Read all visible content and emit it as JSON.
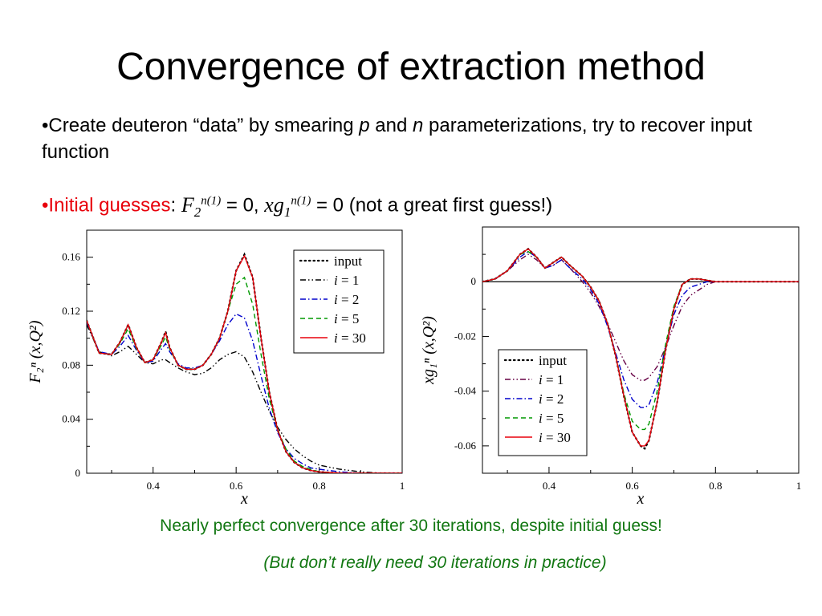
{
  "slide": {
    "title": "Convergence of extraction method",
    "bullet1": {
      "marker": "•",
      "text_a": "Create deuteron “data” by smearing ",
      "p": "p",
      "text_b": " and ",
      "n": "n",
      "text_c": " parameterizations, try to recover input function"
    },
    "bullet2": {
      "marker": "•",
      "label": "Initial guesses",
      "colon": ": ",
      "f2_base": "F",
      "f2_sub": "2",
      "f2_sup": "n(1)",
      "eq1": " = 0, ",
      "xg_base": "xg",
      "xg_sub": "1",
      "xg_sup": "n(1)",
      "eq2": " = 0 (not a great first guess!)"
    },
    "note1": "Nearly perfect convergence after 30 iterations, despite initial guess!",
    "note2": "(But don’t really need 30 iterations in practice)",
    "colors": {
      "title": "#000000",
      "accent_red": "#e8000b",
      "note_green": "#127712"
    }
  },
  "chart_data": [
    {
      "type": "line",
      "ylabel": "F₂ⁿ (x,Q²)",
      "xlabel": "x",
      "xlim": [
        0.24,
        1.0
      ],
      "ylim": [
        0,
        0.18
      ],
      "xticks": [
        0.4,
        0.6,
        0.8,
        1
      ],
      "xtick_labels": [
        "0.4",
        "0.6",
        "0.8",
        "1"
      ],
      "yticks": [
        0,
        0.04,
        0.08,
        0.12,
        0.16
      ],
      "ytick_labels": [
        "0",
        "0.04",
        "0.08",
        "0.12",
        "0.16"
      ],
      "legend_position": "top-right",
      "series": [
        {
          "name": "input",
          "color": "#000000",
          "dash": "dot",
          "x": [
            0.24,
            0.27,
            0.3,
            0.32,
            0.34,
            0.36,
            0.38,
            0.4,
            0.42,
            0.43,
            0.44,
            0.46,
            0.48,
            0.5,
            0.52,
            0.54,
            0.56,
            0.58,
            0.6,
            0.62,
            0.64,
            0.66,
            0.68,
            0.7,
            0.72,
            0.74,
            0.76,
            0.78,
            0.8,
            0.85,
            0.9,
            0.95,
            1.0
          ],
          "y": [
            0.113,
            0.089,
            0.088,
            0.097,
            0.11,
            0.093,
            0.082,
            0.084,
            0.097,
            0.105,
            0.093,
            0.08,
            0.077,
            0.077,
            0.08,
            0.088,
            0.1,
            0.12,
            0.15,
            0.162,
            0.145,
            0.1,
            0.06,
            0.032,
            0.016,
            0.008,
            0.004,
            0.002,
            0.001,
            0.0,
            0.0,
            0.0,
            0.0
          ]
        },
        {
          "name": "i = 1",
          "color": "#000000",
          "dash": "dashdotdot",
          "x": [
            0.24,
            0.27,
            0.3,
            0.32,
            0.34,
            0.36,
            0.38,
            0.4,
            0.42,
            0.43,
            0.44,
            0.46,
            0.48,
            0.5,
            0.52,
            0.54,
            0.56,
            0.58,
            0.6,
            0.62,
            0.64,
            0.66,
            0.68,
            0.7,
            0.72,
            0.74,
            0.76,
            0.78,
            0.8,
            0.85,
            0.9,
            0.95,
            1.0
          ],
          "y": [
            0.11,
            0.09,
            0.087,
            0.09,
            0.094,
            0.088,
            0.082,
            0.081,
            0.084,
            0.084,
            0.082,
            0.078,
            0.075,
            0.073,
            0.074,
            0.078,
            0.084,
            0.088,
            0.09,
            0.086,
            0.075,
            0.06,
            0.046,
            0.034,
            0.025,
            0.018,
            0.013,
            0.009,
            0.006,
            0.003,
            0.001,
            0.0,
            0.0
          ]
        },
        {
          "name": "i = 2",
          "color": "#0000cc",
          "dash": "dashdot",
          "x": [
            0.24,
            0.27,
            0.3,
            0.32,
            0.34,
            0.36,
            0.38,
            0.4,
            0.42,
            0.43,
            0.44,
            0.46,
            0.48,
            0.5,
            0.52,
            0.54,
            0.56,
            0.58,
            0.6,
            0.62,
            0.64,
            0.66,
            0.68,
            0.7,
            0.72,
            0.74,
            0.76,
            0.78,
            0.8,
            0.85,
            0.9,
            0.95,
            1.0
          ],
          "y": [
            0.112,
            0.09,
            0.088,
            0.094,
            0.102,
            0.091,
            0.082,
            0.083,
            0.092,
            0.096,
            0.09,
            0.081,
            0.078,
            0.078,
            0.08,
            0.088,
            0.098,
            0.11,
            0.118,
            0.115,
            0.098,
            0.072,
            0.048,
            0.03,
            0.018,
            0.011,
            0.007,
            0.004,
            0.003,
            0.001,
            0.0,
            0.0,
            0.0
          ]
        },
        {
          "name": "i = 5",
          "color": "#009900",
          "dash": "dash",
          "x": [
            0.24,
            0.27,
            0.3,
            0.32,
            0.34,
            0.36,
            0.38,
            0.4,
            0.42,
            0.43,
            0.44,
            0.46,
            0.48,
            0.5,
            0.52,
            0.54,
            0.56,
            0.58,
            0.6,
            0.62,
            0.64,
            0.66,
            0.68,
            0.7,
            0.72,
            0.74,
            0.76,
            0.78,
            0.8,
            0.85,
            0.9,
            0.95,
            1.0
          ],
          "y": [
            0.113,
            0.089,
            0.088,
            0.096,
            0.107,
            0.092,
            0.082,
            0.084,
            0.095,
            0.101,
            0.092,
            0.08,
            0.077,
            0.077,
            0.08,
            0.088,
            0.1,
            0.12,
            0.14,
            0.145,
            0.125,
            0.088,
            0.055,
            0.032,
            0.018,
            0.009,
            0.005,
            0.003,
            0.001,
            0.0,
            0.0,
            0.0,
            0.0
          ]
        },
        {
          "name": "i = 30",
          "color": "#e8000b",
          "dash": "solid",
          "x": [
            0.24,
            0.27,
            0.3,
            0.32,
            0.34,
            0.36,
            0.38,
            0.4,
            0.42,
            0.43,
            0.44,
            0.46,
            0.48,
            0.5,
            0.52,
            0.54,
            0.56,
            0.58,
            0.6,
            0.62,
            0.64,
            0.66,
            0.68,
            0.7,
            0.72,
            0.74,
            0.76,
            0.78,
            0.8,
            0.85,
            0.9,
            0.95,
            1.0
          ],
          "y": [
            0.113,
            0.089,
            0.088,
            0.097,
            0.11,
            0.093,
            0.082,
            0.084,
            0.097,
            0.104,
            0.093,
            0.08,
            0.077,
            0.077,
            0.08,
            0.088,
            0.1,
            0.12,
            0.15,
            0.161,
            0.145,
            0.1,
            0.06,
            0.032,
            0.016,
            0.008,
            0.004,
            0.002,
            0.001,
            0.0,
            0.0,
            0.0,
            0.0
          ]
        }
      ]
    },
    {
      "type": "line",
      "ylabel": "xg₁ⁿ (x,Q²)",
      "xlabel": "x",
      "xlim": [
        0.24,
        1.0
      ],
      "ylim": [
        -0.07,
        0.02
      ],
      "xticks": [
        0.4,
        0.6,
        0.8,
        1
      ],
      "xtick_labels": [
        "0.4",
        "0.6",
        "0.8",
        "1"
      ],
      "yticks": [
        -0.06,
        -0.04,
        -0.02,
        0
      ],
      "ytick_labels": [
        "-0.06",
        "-0.04",
        "-0.02",
        "0"
      ],
      "zero_line": true,
      "legend_position": "bottom-left",
      "series": [
        {
          "name": "input",
          "color": "#000000",
          "dash": "dot",
          "x": [
            0.24,
            0.27,
            0.3,
            0.33,
            0.35,
            0.37,
            0.39,
            0.41,
            0.43,
            0.45,
            0.48,
            0.5,
            0.52,
            0.54,
            0.56,
            0.58,
            0.6,
            0.62,
            0.63,
            0.64,
            0.66,
            0.68,
            0.7,
            0.72,
            0.74,
            0.76,
            0.78,
            0.8,
            0.85,
            0.9,
            0.95,
            1.0
          ],
          "y": [
            0.0,
            0.001,
            0.004,
            0.01,
            0.012,
            0.009,
            0.005,
            0.007,
            0.009,
            0.006,
            0.002,
            -0.002,
            -0.007,
            -0.015,
            -0.027,
            -0.042,
            -0.055,
            -0.06,
            -0.061,
            -0.058,
            -0.044,
            -0.025,
            -0.01,
            -0.001,
            0.001,
            0.001,
            0.0005,
            0.0,
            0.0,
            0.0,
            0.0,
            0.0
          ]
        },
        {
          "name": "i = 1",
          "color": "#660044",
          "dash": "dashdotdot",
          "x": [
            0.24,
            0.27,
            0.3,
            0.33,
            0.35,
            0.37,
            0.39,
            0.41,
            0.43,
            0.45,
            0.48,
            0.5,
            0.52,
            0.54,
            0.56,
            0.58,
            0.6,
            0.62,
            0.63,
            0.64,
            0.66,
            0.68,
            0.7,
            0.72,
            0.74,
            0.76,
            0.78,
            0.8,
            0.85,
            0.9,
            0.95,
            1.0
          ],
          "y": [
            0.0,
            0.001,
            0.004,
            0.008,
            0.01,
            0.008,
            0.005,
            0.006,
            0.008,
            0.005,
            0.0,
            -0.004,
            -0.009,
            -0.015,
            -0.022,
            -0.029,
            -0.034,
            -0.036,
            -0.036,
            -0.035,
            -0.031,
            -0.024,
            -0.016,
            -0.009,
            -0.005,
            -0.003,
            -0.001,
            0.0,
            0.0,
            0.0,
            0.0,
            0.0
          ]
        },
        {
          "name": "i = 2",
          "color": "#0000cc",
          "dash": "dashdot",
          "x": [
            0.24,
            0.27,
            0.3,
            0.33,
            0.35,
            0.37,
            0.39,
            0.41,
            0.43,
            0.45,
            0.48,
            0.5,
            0.52,
            0.54,
            0.56,
            0.58,
            0.6,
            0.62,
            0.63,
            0.64,
            0.66,
            0.68,
            0.7,
            0.72,
            0.74,
            0.76,
            0.78,
            0.8,
            0.85,
            0.9,
            0.95,
            1.0
          ],
          "y": [
            0.0,
            0.001,
            0.004,
            0.009,
            0.011,
            0.009,
            0.005,
            0.006,
            0.008,
            0.005,
            0.001,
            -0.003,
            -0.008,
            -0.016,
            -0.026,
            -0.036,
            -0.043,
            -0.046,
            -0.046,
            -0.045,
            -0.037,
            -0.024,
            -0.012,
            -0.005,
            -0.002,
            -0.001,
            0.0,
            0.0,
            0.0,
            0.0,
            0.0,
            0.0
          ]
        },
        {
          "name": "i = 5",
          "color": "#009900",
          "dash": "dash",
          "x": [
            0.24,
            0.27,
            0.3,
            0.33,
            0.35,
            0.37,
            0.39,
            0.41,
            0.43,
            0.45,
            0.48,
            0.5,
            0.52,
            0.54,
            0.56,
            0.58,
            0.6,
            0.62,
            0.63,
            0.64,
            0.66,
            0.68,
            0.7,
            0.72,
            0.74,
            0.76,
            0.78,
            0.8,
            0.85,
            0.9,
            0.95,
            1.0
          ],
          "y": [
            0.0,
            0.001,
            0.004,
            0.01,
            0.011,
            0.009,
            0.005,
            0.007,
            0.009,
            0.006,
            0.002,
            -0.002,
            -0.007,
            -0.015,
            -0.027,
            -0.041,
            -0.051,
            -0.054,
            -0.054,
            -0.052,
            -0.04,
            -0.023,
            -0.009,
            -0.001,
            0.001,
            0.001,
            0.0005,
            0.0,
            0.0,
            0.0,
            0.0,
            0.0
          ]
        },
        {
          "name": "i = 30",
          "color": "#e8000b",
          "dash": "solid",
          "x": [
            0.24,
            0.27,
            0.3,
            0.33,
            0.35,
            0.37,
            0.39,
            0.41,
            0.43,
            0.45,
            0.48,
            0.5,
            0.52,
            0.54,
            0.56,
            0.58,
            0.6,
            0.62,
            0.63,
            0.64,
            0.66,
            0.68,
            0.7,
            0.72,
            0.74,
            0.76,
            0.78,
            0.8,
            0.85,
            0.9,
            0.95,
            1.0
          ],
          "y": [
            0.0,
            0.001,
            0.004,
            0.01,
            0.012,
            0.009,
            0.005,
            0.007,
            0.009,
            0.006,
            0.002,
            -0.002,
            -0.007,
            -0.015,
            -0.027,
            -0.042,
            -0.055,
            -0.06,
            -0.06,
            -0.058,
            -0.044,
            -0.025,
            -0.01,
            -0.001,
            0.001,
            0.001,
            0.0005,
            0.0,
            0.0,
            0.0,
            0.0,
            0.0
          ]
        }
      ]
    }
  ]
}
